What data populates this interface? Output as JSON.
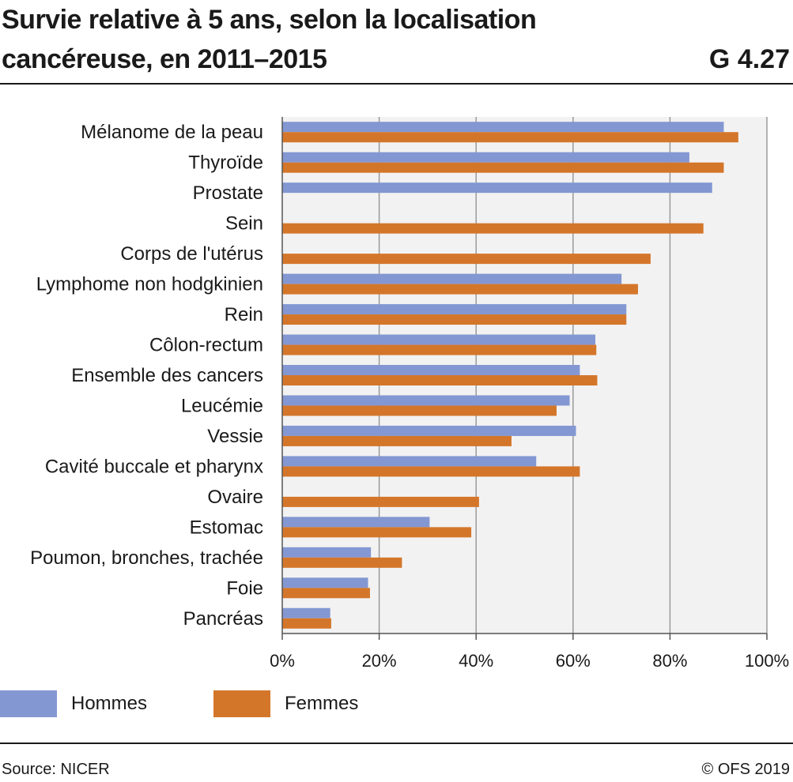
{
  "header": {
    "title_line1": "Survie relative à 5 ans, selon la localisation",
    "title_line2": "cancéreuse, en 2011–2015",
    "code": "G 4.27"
  },
  "footer": {
    "source": "Source: NICER",
    "copyright": "© OFS 2019"
  },
  "colors": {
    "hommes": "#8397d2",
    "femmes": "#d4762a",
    "plot_bg": "#f2f2f2",
    "grid": "#9a9a9a"
  },
  "chart_data": {
    "type": "bar",
    "orientation": "horizontal",
    "title": "Survie relative à 5 ans, selon la localisation cancéreuse, en 2011–2015",
    "xlim": [
      0,
      100
    ],
    "x_ticks": [
      "0%",
      "20%",
      "40%",
      "60%",
      "80%",
      "100%"
    ],
    "grid": true,
    "legend_position": "bottom",
    "categories": [
      "Mélanome de la peau",
      "Thyroïde",
      "Prostate",
      "Sein",
      "Corps de l'utérus",
      "Lymphome non hodgkinien",
      "Rein",
      "Côlon-rectum",
      "Ensemble des cancers",
      "Leucémie",
      "Vessie",
      "Cavité buccale et pharynx",
      "Ovaire",
      "Estomac",
      "Poumon, bronches, trachée",
      "Foie",
      "Pancréas"
    ],
    "series": [
      {
        "name": "Hommes",
        "color": "#8397d2",
        "values": [
          91.1,
          84.0,
          88.7,
          null,
          null,
          70.0,
          71.0,
          64.6,
          61.4,
          59.3,
          60.6,
          52.4,
          null,
          30.4,
          18.3,
          17.7,
          9.9
        ]
      },
      {
        "name": "Femmes",
        "color": "#d4762a",
        "values": [
          94.1,
          91.1,
          null,
          86.9,
          76.0,
          73.4,
          71.0,
          64.8,
          65.0,
          56.6,
          47.3,
          61.4,
          40.6,
          39.0,
          24.7,
          18.1,
          10.1
        ]
      }
    ]
  }
}
